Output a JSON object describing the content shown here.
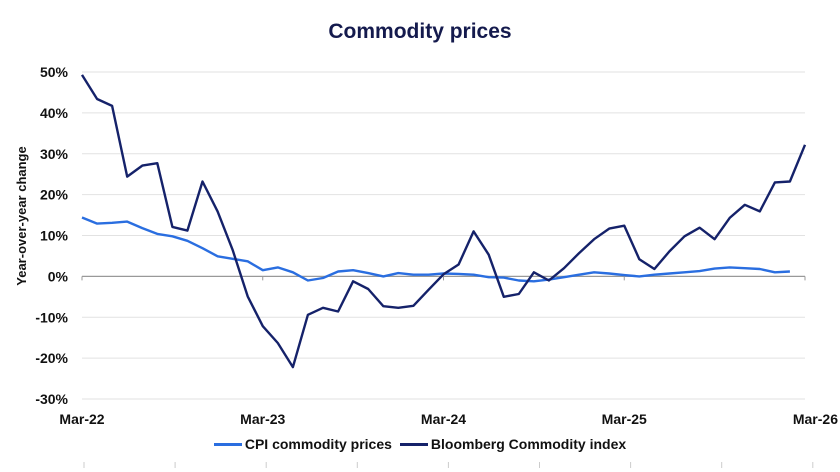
{
  "chart_data": {
    "type": "line",
    "title": "Commodity prices",
    "ylabel": "Year-over-year change",
    "xlabel": "",
    "ylim": [
      -30,
      50
    ],
    "yticks": [
      "50%",
      "40%",
      "30%",
      "20%",
      "10%",
      "0%",
      "-10%",
      "-20%",
      "-30%"
    ],
    "ytick_values": [
      50,
      40,
      30,
      20,
      10,
      0,
      -10,
      -20,
      -30
    ],
    "xticks": [
      "Mar-22",
      "Mar-23",
      "Mar-24",
      "Mar-25",
      "Mar-26"
    ],
    "x_start": "Mar-22",
    "x_end": "Mar-26",
    "frequency": "monthly",
    "grid": "horizontal",
    "legend": "bottom",
    "series": [
      {
        "name": "CPI commodity prices",
        "color": "#2a6ee0",
        "values": [
          14.4,
          12.9,
          13.1,
          13.4,
          11.8,
          10.4,
          9.8,
          8.7,
          6.9,
          4.9,
          4.3,
          3.7,
          1.5,
          2.2,
          1.0,
          -1.0,
          -0.4,
          1.2,
          1.5,
          0.8,
          0.0,
          0.8,
          0.4,
          0.4,
          0.7,
          0.6,
          0.4,
          -0.2,
          -0.3,
          -1.0,
          -1.2,
          -0.8,
          -0.2,
          0.4,
          1.0,
          0.7,
          0.3,
          0.0,
          0.4,
          0.7,
          1.0,
          1.3,
          1.9,
          2.2,
          2.0,
          1.8,
          1.0,
          1.2
        ]
      },
      {
        "name": "Bloomberg Commodity index",
        "color": "#15226a",
        "values": [
          49.3,
          43.4,
          41.7,
          24.4,
          27.1,
          27.7,
          12.1,
          11.2,
          23.2,
          15.9,
          6.5,
          -4.9,
          -12.2,
          -16.3,
          -22.2,
          -9.4,
          -7.7,
          -8.6,
          -1.2,
          -3.1,
          -7.3,
          -7.7,
          -7.2,
          -3.3,
          0.5,
          2.9,
          11.0,
          5.3,
          -5.0,
          -4.3,
          1.0,
          -1.0,
          2.0,
          5.7,
          9.1,
          11.7,
          12.4,
          4.2,
          1.8,
          6.1,
          9.8,
          11.9,
          9.1,
          14.3,
          17.5,
          15.9,
          23.0,
          23.2,
          32.2
        ]
      }
    ]
  }
}
